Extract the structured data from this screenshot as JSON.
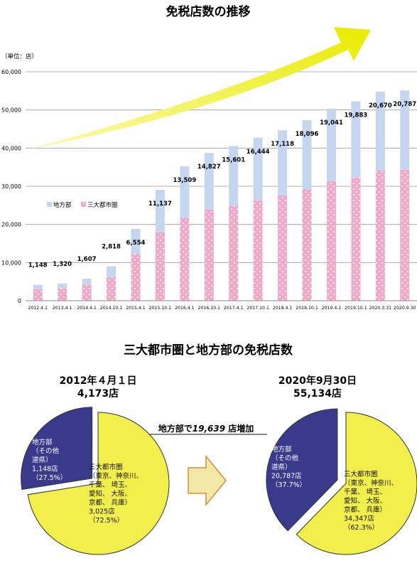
{
  "chart_data": [
    {
      "type": "bar",
      "stacked": true,
      "title": "免税店数の推移",
      "unit_label": "（単位：店）",
      "ylim": [
        0,
        60000
      ],
      "yticks": [
        "0",
        "10,000",
        "20,000",
        "30,000",
        "40,000",
        "50,000",
        "60,000"
      ],
      "grid": true,
      "categories": [
        "2012.4.1",
        "2013.4.1",
        "2014.4.1",
        "2014.10.1",
        "2015.4.1",
        "2015.10.1",
        "2016.4.1",
        "2016.10.1",
        "2017.4.1",
        "2017.10.1",
        "2018.4.1",
        "2018.10.1",
        "2019.4.1",
        "2019.10.1",
        "2020.3.31",
        "2020.9.30"
      ],
      "series": [
        {
          "name": "三大都市圏",
          "color": "#f4a6c9",
          "values": [
            3025,
            3193,
            4170,
            6182,
            12246,
            17932,
            21735,
            23885,
            24940,
            26265,
            27570,
            29218,
            31301,
            32383,
            34147,
            34347
          ]
        },
        {
          "name": "地方部",
          "color": "#c5d6f0",
          "values": [
            1148,
            1320,
            1607,
            2818,
            6554,
            11137,
            13509,
            14827,
            15601,
            16444,
            17118,
            18096,
            19041,
            19883,
            20670,
            20787
          ]
        }
      ],
      "data_labels": [
        "1,148",
        "1,320",
        "1,607",
        "2,818",
        "6,554",
        "11,137",
        "13,509",
        "14,827",
        "15,601",
        "16,444",
        "17,118",
        "18,096",
        "19,041",
        "19,883",
        "20,670",
        "20,787"
      ],
      "legend_position": "left, mid-height",
      "arrow_color": "#f2f22a"
    },
    {
      "type": "pie",
      "section_title": "三大都市圏と地方部の免税店数",
      "date": "2012年４月１日",
      "total": "4,173店",
      "slices": [
        {
          "key": "rural",
          "value": 1148,
          "percent": 27.5,
          "color": "#3a3a8c",
          "lines": [
            "地方部",
            "（その他",
            "道県）",
            "1,148店",
            "（27.5%）"
          ]
        },
        {
          "key": "metro",
          "value": 3025,
          "percent": 72.5,
          "color": "#f2ee4c",
          "lines": [
            "三大都市圏",
            "（東京、神奈川、",
            "千葉、 埼玉、",
            "愛知、 大阪、",
            "京都、 兵庫）",
            "3,025店",
            "（72.5%）"
          ]
        }
      ]
    },
    {
      "type": "pie",
      "date": "2020年9月30日",
      "total": "55,134店",
      "slices": [
        {
          "key": "rural",
          "value": 20787,
          "percent": 37.7,
          "color": "#3a3a8c",
          "lines": [
            "地方部",
            "（その他",
            "道県）",
            "20,787店",
            "（37.7%）"
          ]
        },
        {
          "key": "metro",
          "value": 34347,
          "percent": 62.3,
          "color": "#f2ee4c",
          "lines": [
            "三大都市圏",
            "（東京、神奈川、",
            "千葉、 埼玉、",
            "愛知、 大阪、",
            "京都、 兵庫）",
            "34,347店",
            "（62.3%）"
          ]
        }
      ]
    }
  ],
  "increase_note": {
    "prefix": "地方部で",
    "number": "19,639",
    "suffix": " 店増加"
  },
  "colors": {
    "arrow_fill": "#f3e9a6",
    "arrow_stroke": "#e08a3a",
    "pie_edge": "#333333"
  }
}
